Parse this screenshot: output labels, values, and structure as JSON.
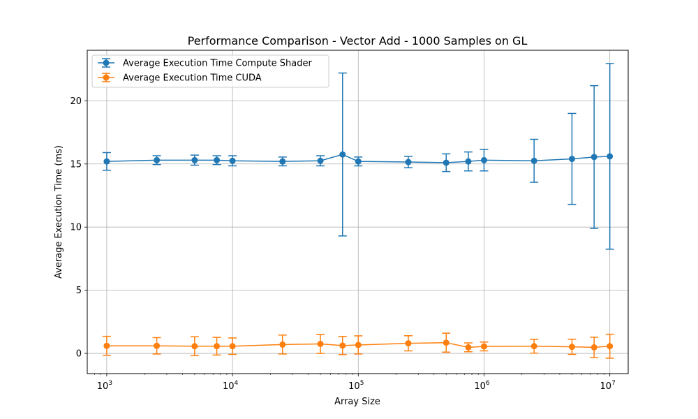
{
  "chart_data": {
    "type": "line",
    "title": "Performance Comparison - Vector Add - 1000 Samples on GL",
    "xlabel": "Array Size",
    "ylabel": "Average Execution Time (ms)",
    "xscale": "log",
    "xlim": [
      700,
      14000000
    ],
    "ylim": [
      -1.6,
      24
    ],
    "yticks": [
      0,
      5,
      10,
      15,
      20
    ],
    "xticks": [
      1000,
      10000,
      100000,
      1000000,
      10000000
    ],
    "xtick_labels": [
      {
        "base": "10",
        "exp": "3"
      },
      {
        "base": "10",
        "exp": "4"
      },
      {
        "base": "10",
        "exp": "5"
      },
      {
        "base": "10",
        "exp": "6"
      },
      {
        "base": "10",
        "exp": "7"
      }
    ],
    "grid": true,
    "legend": "top-left",
    "x": [
      1000,
      2500,
      5000,
      7500,
      10000,
      25000,
      50000,
      75000,
      100000,
      250000,
      500000,
      750000,
      1000000,
      2500000,
      5000000,
      7500000,
      10000000
    ],
    "series": [
      {
        "name": "Average Execution Time Compute Shader",
        "color": "#1f77b4",
        "values": [
          15.2,
          15.3,
          15.3,
          15.3,
          15.25,
          15.2,
          15.25,
          15.75,
          15.2,
          15.15,
          15.1,
          15.2,
          15.3,
          15.25,
          15.4,
          15.55,
          15.6
        ],
        "errors": [
          0.7,
          0.35,
          0.4,
          0.35,
          0.4,
          0.35,
          0.4,
          6.45,
          0.35,
          0.45,
          0.7,
          0.75,
          0.85,
          1.7,
          3.6,
          5.65,
          7.35
        ]
      },
      {
        "name": "Average Execution Time CUDA",
        "color": "#ff7f0e",
        "values": [
          0.6,
          0.6,
          0.57,
          0.57,
          0.57,
          0.7,
          0.75,
          0.62,
          0.67,
          0.8,
          0.85,
          0.48,
          0.55,
          0.57,
          0.52,
          0.48,
          0.57
        ],
        "errors": [
          0.75,
          0.65,
          0.75,
          0.7,
          0.65,
          0.75,
          0.75,
          0.72,
          0.72,
          0.6,
          0.75,
          0.35,
          0.35,
          0.55,
          0.6,
          0.8,
          0.95
        ]
      }
    ]
  }
}
